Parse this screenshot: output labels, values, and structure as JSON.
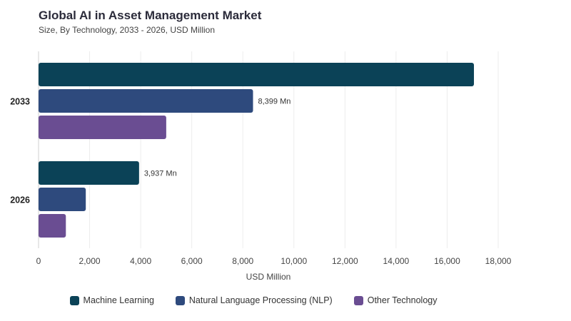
{
  "chart_data": {
    "type": "bar",
    "orientation": "horizontal",
    "title": "Global AI in Asset Management Market",
    "subtitle": "Size, By Technology, 2033 - 2026, USD Million",
    "xlabel": "USD Million",
    "ylabel": "",
    "xlim": [
      0,
      18000
    ],
    "xticks": [
      "0",
      "2,000",
      "4,000",
      "6,000",
      "8,000",
      "10,000",
      "12,000",
      "14,000",
      "16,000",
      "18,000"
    ],
    "grid": true,
    "legend_position": "bottom",
    "categories": [
      "2033",
      "2026"
    ],
    "series": [
      {
        "name": "Machine Learning",
        "color": "#0b4257",
        "values": [
          17050,
          3937
        ],
        "labels": [
          "",
          "3,937 Mn"
        ]
      },
      {
        "name": "Natural Language Processing (NLP)",
        "color": "#2e4a7d",
        "values": [
          8399,
          1850
        ],
        "labels": [
          "8,399 Mn",
          ""
        ]
      },
      {
        "name": "Other Technology",
        "color": "#6a4d92",
        "values": [
          5000,
          1070
        ],
        "labels": [
          "",
          ""
        ]
      }
    ]
  }
}
